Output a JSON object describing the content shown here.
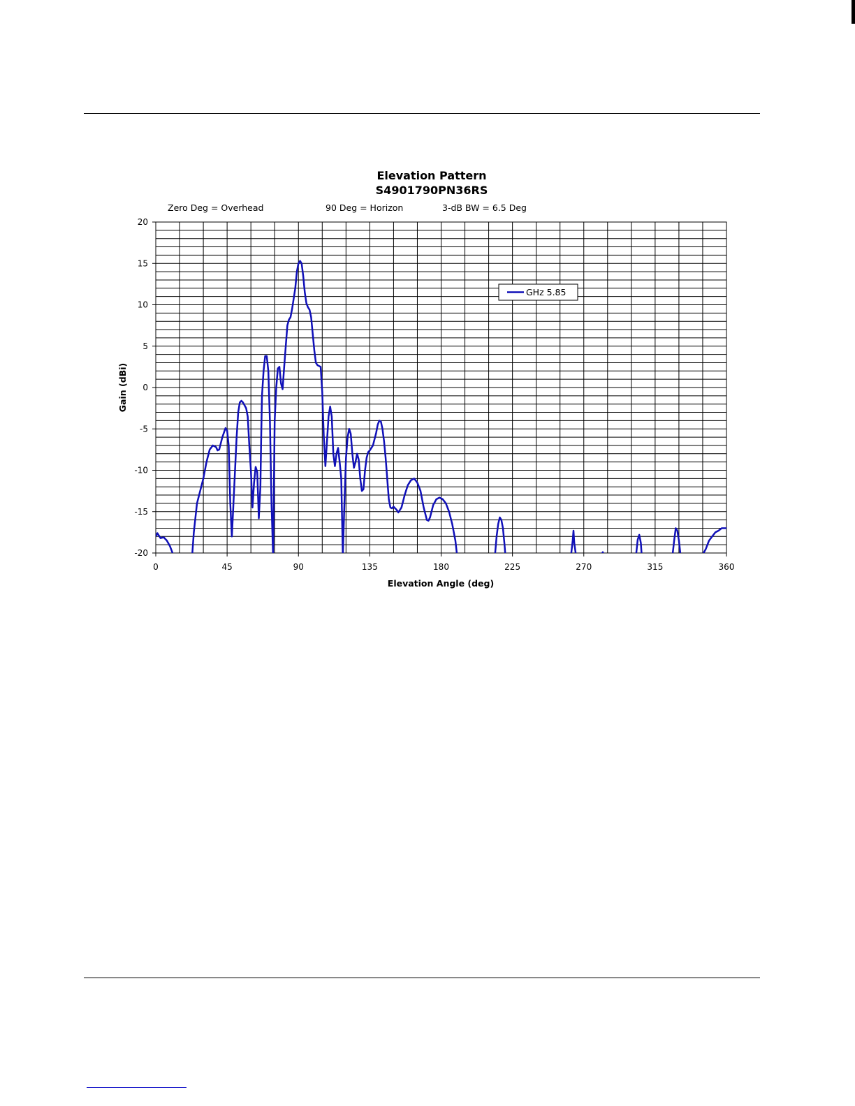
{
  "chart_data": {
    "type": "line",
    "title": "Elevation Pattern",
    "subtitle": "S4901790PN36RS",
    "annotations": [
      "Zero Deg = Overhead",
      "90 Deg = Horizon",
      "3-dB BW = 6.5 Deg"
    ],
    "xlabel": "Elevation Angle (deg)",
    "ylabel": "Gain (dBi)",
    "xlim": [
      0,
      360
    ],
    "ylim": [
      -20,
      20
    ],
    "x_ticks": [
      0,
      45,
      90,
      135,
      180,
      225,
      270,
      315,
      360
    ],
    "y_ticks": [
      20,
      15,
      10,
      5,
      0,
      -5,
      -10,
      -15,
      -20
    ],
    "grid": true,
    "legend_position": "upper-right",
    "series_color": "#1010b8",
    "series": [
      {
        "name": "GHz 5.85",
        "points": [
          [
            0,
            -18
          ],
          [
            1,
            -17.6
          ],
          [
            3,
            -18.2
          ],
          [
            5,
            -18.1
          ],
          [
            7,
            -18.5
          ],
          [
            9,
            -19.2
          ],
          [
            11,
            -20.2
          ],
          [
            23,
            -20.2
          ],
          [
            24,
            -17.5
          ],
          [
            26,
            -14
          ],
          [
            28,
            -12.5
          ],
          [
            30,
            -11
          ],
          [
            32,
            -9
          ],
          [
            34,
            -7.5
          ],
          [
            36,
            -7
          ],
          [
            38,
            -7.2
          ],
          [
            39,
            -7.6
          ],
          [
            40,
            -7.5
          ],
          [
            42,
            -6
          ],
          [
            44,
            -4.9
          ],
          [
            45,
            -5.2
          ],
          [
            46,
            -7
          ],
          [
            47,
            -14
          ],
          [
            48,
            -18
          ],
          [
            49,
            -14
          ],
          [
            51,
            -6
          ],
          [
            52,
            -3
          ],
          [
            53,
            -1.8
          ],
          [
            54,
            -1.6
          ],
          [
            55,
            -1.8
          ],
          [
            57,
            -2.5
          ],
          [
            58,
            -3.5
          ],
          [
            59,
            -7
          ],
          [
            60,
            -10
          ],
          [
            61,
            -14.5
          ],
          [
            62,
            -11.5
          ],
          [
            63,
            -9.6
          ],
          [
            64,
            -10.2
          ],
          [
            64.5,
            -13
          ],
          [
            65,
            -15.8
          ],
          [
            66,
            -12
          ],
          [
            66.5,
            -6
          ],
          [
            67,
            -1
          ],
          [
            68,
            2
          ],
          [
            69,
            3.8
          ],
          [
            70,
            3.8
          ],
          [
            71,
            2
          ],
          [
            72,
            -4
          ],
          [
            73,
            -14
          ],
          [
            74,
            -20.3
          ],
          [
            75,
            -4
          ],
          [
            76,
            0
          ],
          [
            77,
            2.3
          ],
          [
            78,
            2.5
          ],
          [
            79,
            0.5
          ],
          [
            80,
            -0.2
          ],
          [
            81,
            2.5
          ],
          [
            82,
            5
          ],
          [
            83,
            7.5
          ],
          [
            84,
            8.2
          ],
          [
            85,
            8.5
          ],
          [
            86,
            9.5
          ],
          [
            88,
            12
          ],
          [
            89,
            14
          ],
          [
            90,
            15
          ],
          [
            91,
            15.3
          ],
          [
            92,
            15
          ],
          [
            93,
            13.5
          ],
          [
            94,
            11.5
          ],
          [
            95,
            10.2
          ],
          [
            96,
            9.7
          ],
          [
            97,
            9.4
          ],
          [
            98,
            8.5
          ],
          [
            99,
            6.5
          ],
          [
            100,
            4.5
          ],
          [
            101,
            3
          ],
          [
            102,
            2.7
          ],
          [
            103,
            2.6
          ],
          [
            104,
            2.5
          ],
          [
            105,
            -0.5
          ],
          [
            106,
            -6
          ],
          [
            107,
            -9.5
          ],
          [
            108,
            -6.5
          ],
          [
            109,
            -3.5
          ],
          [
            110,
            -2.3
          ],
          [
            111,
            -3.5
          ],
          [
            112,
            -8
          ],
          [
            113,
            -9.5
          ],
          [
            114,
            -8
          ],
          [
            115,
            -7.3
          ],
          [
            116,
            -9
          ],
          [
            117,
            -11
          ],
          [
            118,
            -20.3
          ],
          [
            119,
            -14
          ],
          [
            120,
            -8.5
          ],
          [
            121,
            -6
          ],
          [
            122,
            -5
          ],
          [
            123,
            -5.6
          ],
          [
            124,
            -8
          ],
          [
            125,
            -9.7
          ],
          [
            126,
            -9
          ],
          [
            127,
            -8
          ],
          [
            128,
            -8.7
          ],
          [
            129,
            -11
          ],
          [
            130,
            -12.5
          ],
          [
            131,
            -12.3
          ],
          [
            132,
            -10
          ],
          [
            133,
            -8.5
          ],
          [
            134,
            -7.8
          ],
          [
            135,
            -7.6
          ],
          [
            137,
            -7
          ],
          [
            139,
            -5.5
          ],
          [
            140,
            -4.5
          ],
          [
            141,
            -4
          ],
          [
            142,
            -4.1
          ],
          [
            143,
            -5
          ],
          [
            144,
            -6.5
          ],
          [
            145,
            -8.5
          ],
          [
            146,
            -11
          ],
          [
            147,
            -13.5
          ],
          [
            148,
            -14.5
          ],
          [
            149,
            -14.6
          ],
          [
            150,
            -14.4
          ],
          [
            152,
            -14.8
          ],
          [
            153,
            -15.1
          ],
          [
            155,
            -14.5
          ],
          [
            157,
            -13
          ],
          [
            159,
            -11.8
          ],
          [
            161,
            -11.2
          ],
          [
            163,
            -11
          ],
          [
            165,
            -11.5
          ],
          [
            167,
            -12.5
          ],
          [
            169,
            -14.5
          ],
          [
            171,
            -16
          ],
          [
            172,
            -16.1
          ],
          [
            173,
            -15.7
          ],
          [
            175,
            -14.2
          ],
          [
            177,
            -13.5
          ],
          [
            179,
            -13.3
          ],
          [
            181,
            -13.5
          ],
          [
            183,
            -14
          ],
          [
            185,
            -15
          ],
          [
            187,
            -16.5
          ],
          [
            189,
            -18.5
          ],
          [
            190,
            -20.2
          ],
          [
            214,
            -20.2
          ],
          [
            215,
            -18
          ],
          [
            216,
            -16.5
          ],
          [
            217,
            -15.7
          ],
          [
            218,
            -16
          ],
          [
            219,
            -17
          ],
          [
            220,
            -19
          ],
          [
            220.5,
            -20.2
          ],
          [
            262,
            -20.2
          ],
          [
            263,
            -18.5
          ],
          [
            263.5,
            -17.3
          ],
          [
            264,
            -18.8
          ],
          [
            265,
            -20.2
          ],
          [
            281,
            -20.2
          ],
          [
            282,
            -19.9
          ],
          [
            282.5,
            -20.2
          ],
          [
            303,
            -20.2
          ],
          [
            304,
            -18.4
          ],
          [
            305,
            -17.8
          ],
          [
            306,
            -18.8
          ],
          [
            306.5,
            -20.2
          ],
          [
            326,
            -20.2
          ],
          [
            327,
            -18.5
          ],
          [
            328,
            -17
          ],
          [
            329,
            -17.3
          ],
          [
            330,
            -18.5
          ],
          [
            331,
            -20.2
          ],
          [
            345,
            -20.2
          ],
          [
            347,
            -19.5
          ],
          [
            349,
            -18.5
          ],
          [
            351,
            -18
          ],
          [
            353,
            -17.5
          ],
          [
            355,
            -17.3
          ],
          [
            357,
            -17
          ],
          [
            360,
            -17
          ]
        ]
      }
    ]
  }
}
